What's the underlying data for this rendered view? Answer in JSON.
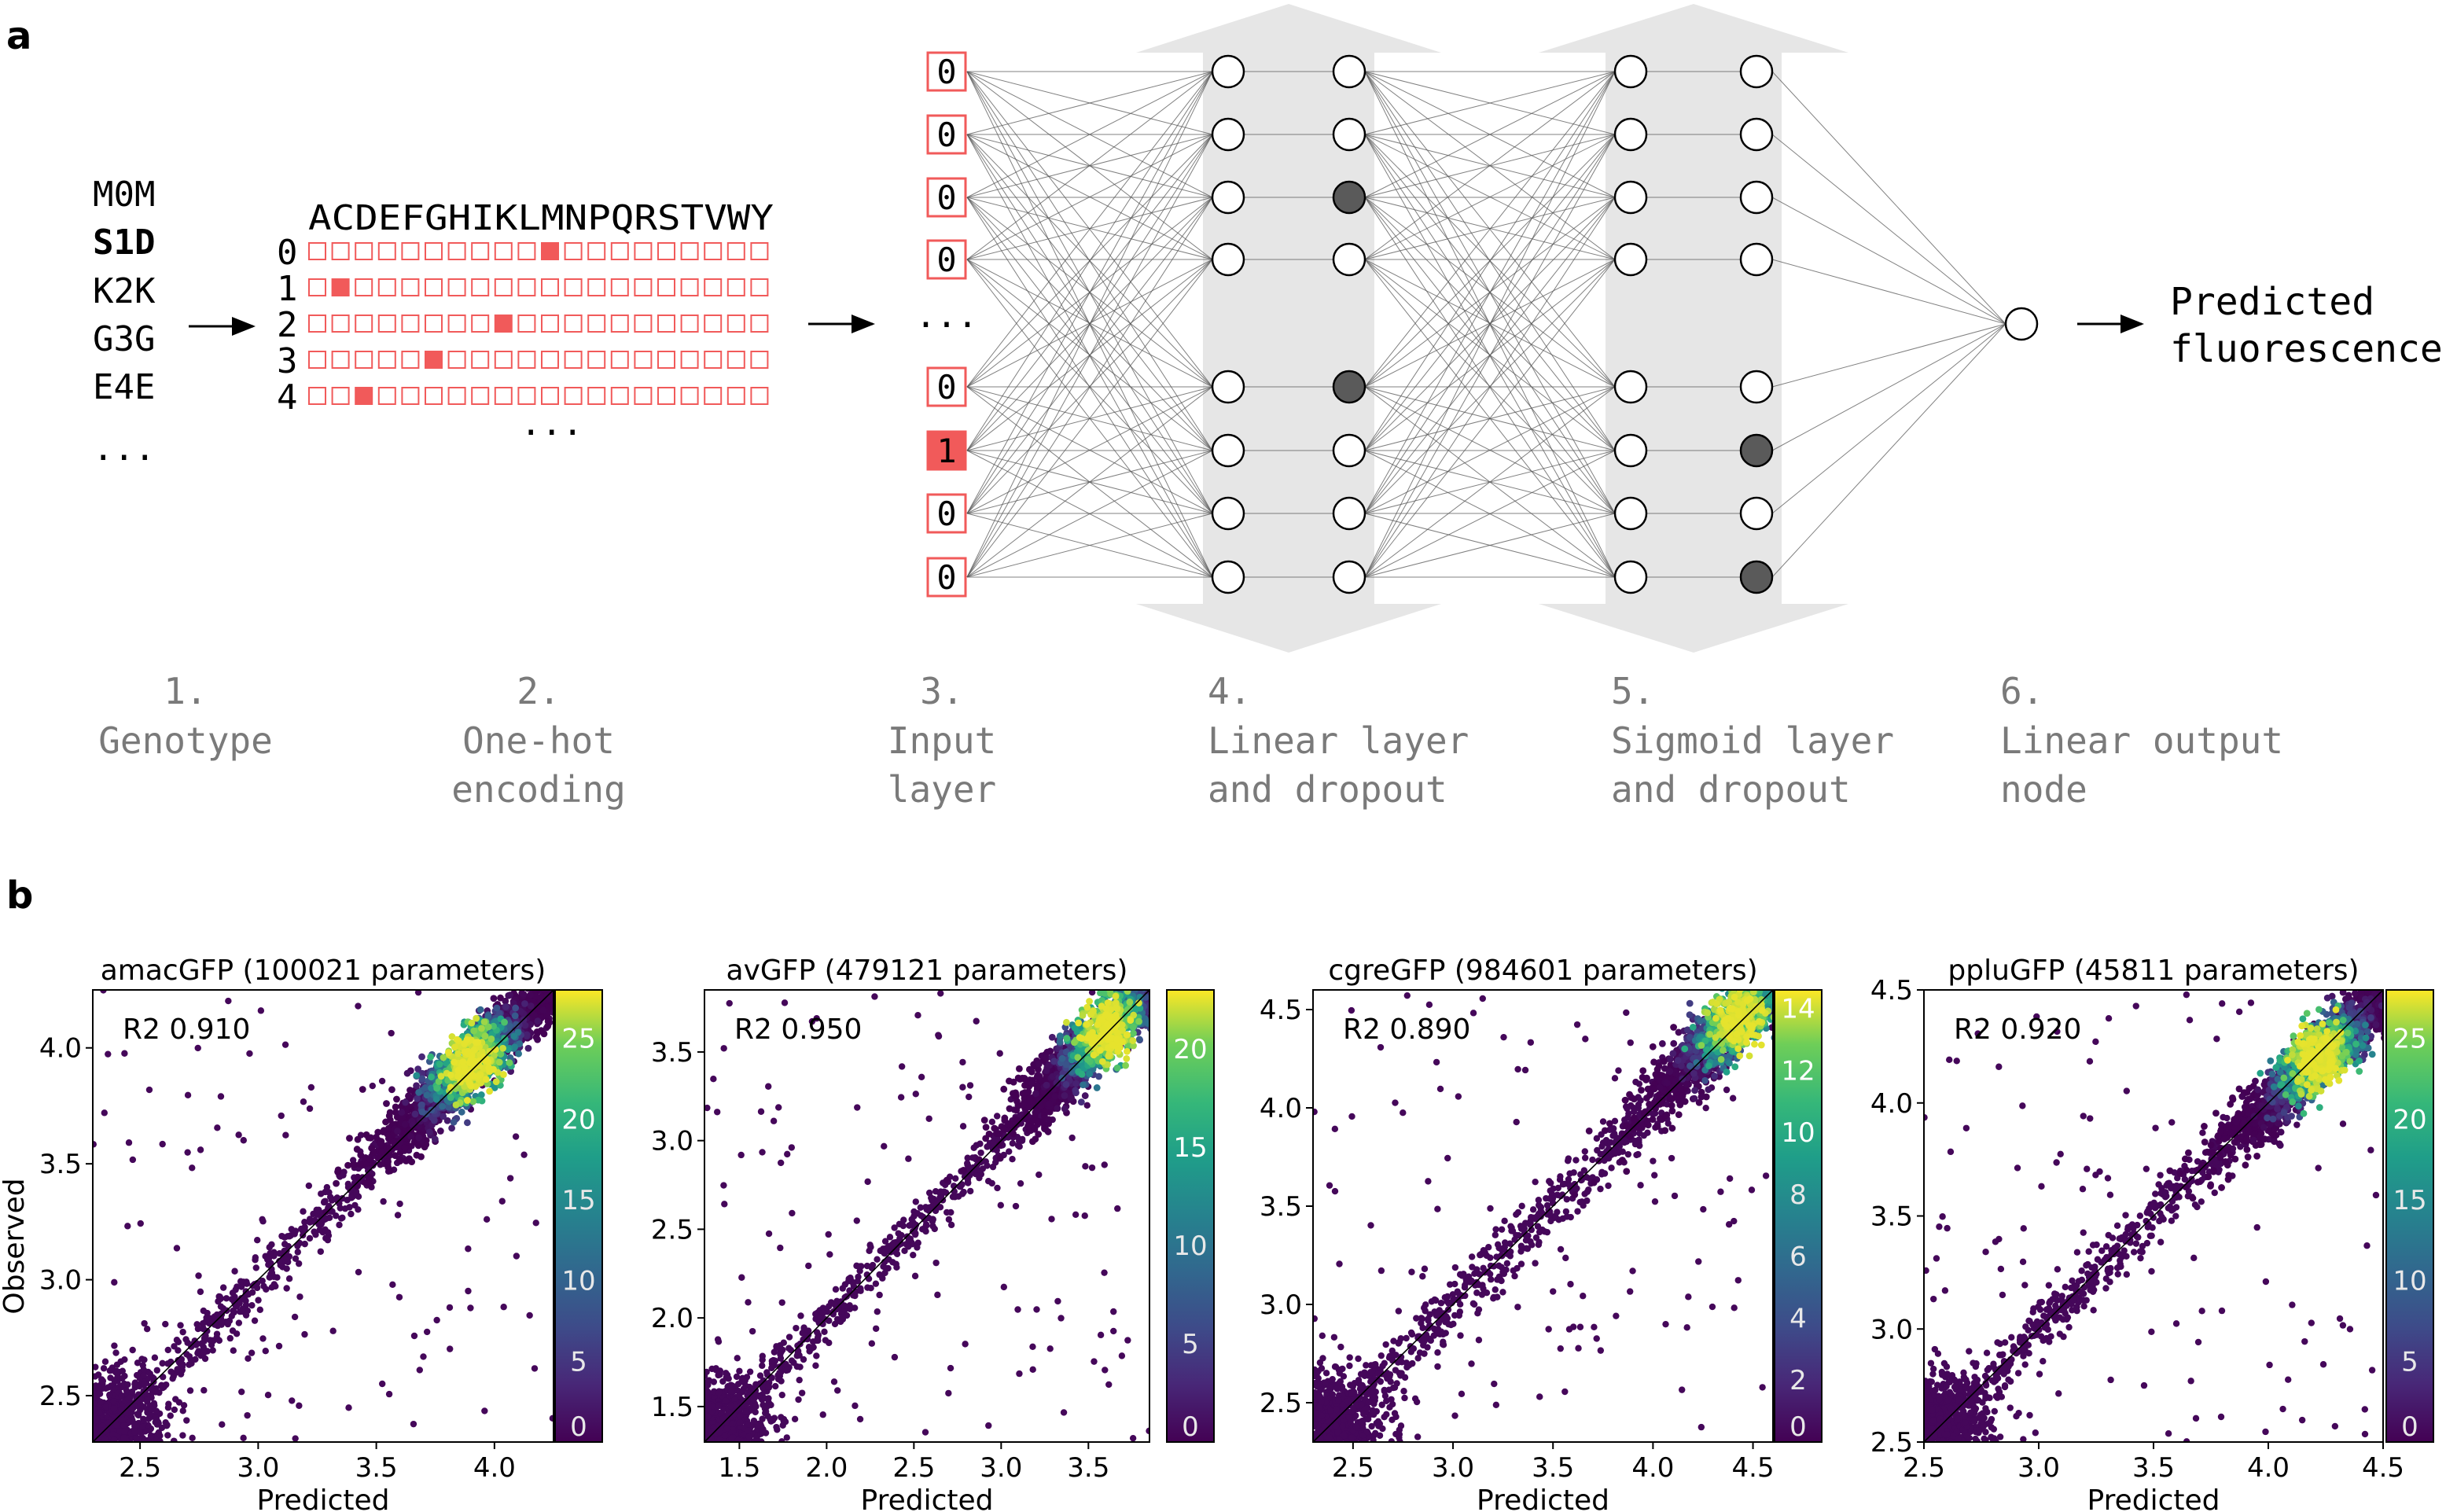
{
  "panel_a": {
    "label": "a",
    "genotypes": [
      "M0M",
      "S1D",
      "K2K",
      "G3G",
      "E4E",
      "..."
    ],
    "bold_genotype_index": 1,
    "alphabet": "ACDEFGHIKLMNPQRSTVWY",
    "rows": [
      {
        "index": "0",
        "hot": 10
      },
      {
        "index": "1",
        "hot": 1
      },
      {
        "index": "2",
        "hot": 8
      },
      {
        "index": "3",
        "hot": 5
      },
      {
        "index": "4",
        "hot": 2
      }
    ],
    "row_ellipsis": "...",
    "input_values": [
      "0",
      "0",
      "0",
      "0",
      "...",
      "0",
      "1",
      "0",
      "0"
    ],
    "dropout_layer4": [
      2,
      4
    ],
    "dropout_layer5": [
      5,
      7
    ],
    "output_text": [
      "Predicted",
      "fluorescence"
    ],
    "steps": [
      {
        "num": "1.",
        "lines": [
          "Genotype"
        ]
      },
      {
        "num": "2.",
        "lines": [
          "One-hot",
          "encoding"
        ]
      },
      {
        "num": "3.",
        "lines": [
          "Input",
          "layer"
        ]
      },
      {
        "num": "4.",
        "lines": [
          "Linear layer",
          "and dropout"
        ]
      },
      {
        "num": "5.",
        "lines": [
          "Sigmoid layer",
          "and dropout"
        ]
      },
      {
        "num": "6.",
        "lines": [
          "Linear output",
          "node"
        ]
      }
    ],
    "colors": {
      "hot": "#f15a5a",
      "dropout": "#5a5a5a",
      "band": "#e6e6e6",
      "step_text": "#7a7a7a"
    }
  },
  "panel_b": {
    "label": "b",
    "ylabel": "Observed",
    "xlabel": "Predicted"
  },
  "chart_data": [
    {
      "type": "scatter",
      "title": "amacGFP (100021 parameters)",
      "annotation": "R2 0.910",
      "xlabel": "Predicted",
      "ylabel": "Observed",
      "xlim": [
        2.3,
        4.25
      ],
      "ylim": [
        2.3,
        4.25
      ],
      "xticks": [
        "2.5",
        "3.0",
        "3.5",
        "4.0"
      ],
      "xtick_values": [
        2.5,
        3.0,
        3.5,
        4.0
      ],
      "yticks": [
        "2.5",
        "3.0",
        "3.5",
        "4.0"
      ],
      "ytick_values": [
        2.5,
        3.0,
        3.5,
        4.0
      ],
      "colorbar_ticks": [
        "0",
        "5",
        "10",
        "15",
        "20",
        "25"
      ],
      "colorbar_values": [
        0,
        5,
        10,
        15,
        20,
        25
      ],
      "colorbar_max": 28,
      "r2": 0.91,
      "density_center": [
        3.9,
        3.93
      ],
      "seed": 11
    },
    {
      "type": "scatter",
      "title": "avGFP (479121 parameters)",
      "annotation": "R2 0.950",
      "xlabel": "Predicted",
      "ylabel": "",
      "xlim": [
        1.3,
        3.85
      ],
      "ylim": [
        1.3,
        3.85
      ],
      "xticks": [
        "1.5",
        "2.0",
        "2.5",
        "3.0",
        "3.5"
      ],
      "xtick_values": [
        1.5,
        2.0,
        2.5,
        3.0,
        3.5
      ],
      "yticks": [
        "1.5",
        "2.0",
        "2.5",
        "3.0",
        "3.5"
      ],
      "ytick_values": [
        1.5,
        2.0,
        2.5,
        3.0,
        3.5
      ],
      "colorbar_ticks": [
        "0",
        "5",
        "10",
        "15",
        "20"
      ],
      "colorbar_values": [
        0,
        5,
        10,
        15,
        20
      ],
      "colorbar_max": 23,
      "r2": 0.95,
      "density_center": [
        3.6,
        3.62
      ],
      "seed": 23
    },
    {
      "type": "scatter",
      "title": "cgreGFP (984601 parameters)",
      "annotation": "R2 0.890",
      "xlabel": "Predicted",
      "ylabel": "",
      "xlim": [
        2.3,
        4.6
      ],
      "ylim": [
        2.3,
        4.6
      ],
      "xticks": [
        "2.5",
        "3.0",
        "3.5",
        "4.0",
        "4.5"
      ],
      "xtick_values": [
        2.5,
        3.0,
        3.5,
        4.0,
        4.5
      ],
      "yticks": [
        "2.5",
        "3.0",
        "3.5",
        "4.0",
        "4.5"
      ],
      "ytick_values": [
        2.5,
        3.0,
        3.5,
        4.0,
        4.5
      ],
      "colorbar_ticks": [
        "0",
        "2",
        "4",
        "6",
        "8",
        "10",
        "12",
        "14"
      ],
      "colorbar_values": [
        0,
        2,
        4,
        6,
        8,
        10,
        12,
        14
      ],
      "colorbar_max": 14.6,
      "r2": 0.89,
      "density_center": [
        4.42,
        4.45
      ],
      "seed": 37
    },
    {
      "type": "scatter",
      "title": "ppluGFP (45811 parameters)",
      "annotation": "R2 0.920",
      "xlabel": "Predicted",
      "ylabel": "",
      "xlim": [
        2.5,
        4.5
      ],
      "ylim": [
        2.5,
        4.5
      ],
      "xticks": [
        "2.5",
        "3.0",
        "3.5",
        "4.0",
        "4.5"
      ],
      "xtick_values": [
        2.5,
        3.0,
        3.5,
        4.0,
        4.5
      ],
      "yticks": [
        "2.5",
        "3.0",
        "3.5",
        "4.0",
        "4.5"
      ],
      "ytick_values": [
        2.5,
        3.0,
        3.5,
        4.0,
        4.5
      ],
      "colorbar_ticks": [
        "0",
        "5",
        "10",
        "15",
        "20",
        "25"
      ],
      "colorbar_values": [
        0,
        5,
        10,
        15,
        20,
        25
      ],
      "colorbar_max": 28,
      "r2": 0.92,
      "density_center": [
        4.22,
        4.2
      ],
      "seed": 53
    }
  ]
}
